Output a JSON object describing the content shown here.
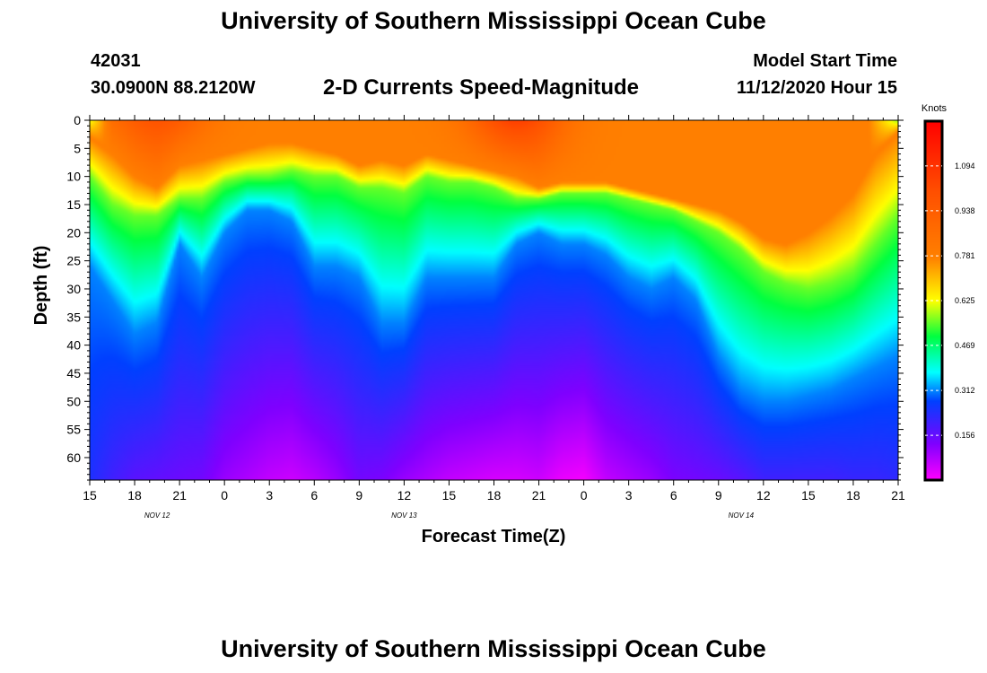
{
  "header": {
    "title": "University of Southern Mississippi Ocean Cube",
    "station_id": "42031",
    "station_coords": "30.0900N 88.2120W",
    "plot_title": "2-D Currents Speed-Magnitude",
    "model_label": "Model Start Time",
    "model_time": "11/12/2020 Hour 15"
  },
  "footer": {
    "title": "University of Southern Mississippi Ocean Cube"
  },
  "chart_data": {
    "type": "heatmap",
    "title": "2-D Currents Speed-Magnitude",
    "xlabel": "Forecast Time(Z)",
    "ylabel": "Depth (ft)",
    "ylim": [
      0,
      64
    ],
    "y_inverted": true,
    "yticks": [
      0,
      5,
      10,
      15,
      20,
      25,
      30,
      35,
      40,
      45,
      50,
      55,
      60
    ],
    "x_hours_range": [
      0,
      54
    ],
    "xtick_hours": [
      0,
      3,
      6,
      9,
      12,
      15,
      18,
      21,
      24,
      27,
      30,
      33,
      36,
      39,
      42,
      45,
      48,
      51,
      54
    ],
    "xtick_labels": [
      "15",
      "18",
      "21",
      "0",
      "3",
      "6",
      "9",
      "12",
      "15",
      "18",
      "21",
      "0",
      "3",
      "6",
      "9",
      "12",
      "15",
      "18",
      "21"
    ],
    "date_labels": [
      {
        "text": "NOV  12",
        "hour": 4.5
      },
      {
        "text": "NOV  13",
        "hour": 21
      },
      {
        "text": "NOV  14",
        "hour": 43.5
      }
    ],
    "colorbar": {
      "label": "Knots",
      "range": [
        0.0,
        1.25
      ],
      "tick_values": [
        1.094,
        0.938,
        0.781,
        0.625,
        0.469,
        0.312,
        0.156
      ],
      "tick_labels": [
        "1.094",
        "0.938",
        "0.781",
        "0.625",
        "0.469",
        "0.312",
        "0.156"
      ]
    },
    "profile": {
      "description": "Speed decreases with depth; per-hour key depths (ft) where speed crosses 0.78, 0.55, 0.31 kt, plus bottom minimum speed (kt)",
      "hours": [
        0,
        1.5,
        3,
        4.5,
        6,
        7.5,
        9,
        10.5,
        12,
        13.5,
        15,
        16.5,
        18,
        19.5,
        21,
        22.5,
        24,
        25.5,
        27,
        28.5,
        30,
        31.5,
        33,
        34.5,
        36,
        37.5,
        39,
        40.5,
        42,
        43.5,
        45,
        46.5,
        48,
        49.5,
        51,
        52.5,
        54
      ],
      "d_orange": [
        3,
        6,
        10,
        12,
        8,
        7,
        6,
        5,
        4,
        4,
        5,
        6,
        8,
        7,
        8,
        6,
        7,
        8,
        9,
        10,
        12,
        11,
        11,
        11,
        12,
        13,
        14,
        15,
        16,
        18,
        21,
        22,
        20,
        17,
        13,
        6,
        2
      ],
      "d_green": [
        10,
        15,
        17,
        17,
        14,
        14,
        11,
        10,
        10,
        9,
        10,
        10,
        12,
        12,
        13,
        10,
        11,
        11,
        12,
        14,
        14,
        13,
        13,
        13,
        14,
        15,
        16,
        18,
        20,
        23,
        27,
        29,
        30,
        29,
        27,
        22,
        17
      ],
      "d_cyan": [
        26,
        32,
        38,
        36,
        22,
        28,
        20,
        16,
        16,
        18,
        26,
        26,
        28,
        36,
        36,
        28,
        28,
        28,
        28,
        22,
        20,
        22,
        22,
        24,
        28,
        30,
        28,
        32,
        42,
        48,
        50,
        50,
        49,
        48,
        46,
        44,
        42
      ],
      "bot_speed": [
        0.24,
        0.2,
        0.17,
        0.16,
        0.15,
        0.14,
        0.1,
        0.08,
        0.06,
        0.05,
        0.07,
        0.1,
        0.14,
        0.13,
        0.1,
        0.08,
        0.06,
        0.05,
        0.04,
        0.04,
        0.05,
        0.02,
        0.01,
        0.06,
        0.08,
        0.1,
        0.13,
        0.14,
        0.15,
        0.17,
        0.2,
        0.2,
        0.2,
        0.2,
        0.21,
        0.21,
        0.22
      ],
      "surface_peak": [
        {
          "hour": 4.5,
          "speed": 0.98
        },
        {
          "hour": 28.5,
          "speed": 1.05
        }
      ]
    }
  }
}
